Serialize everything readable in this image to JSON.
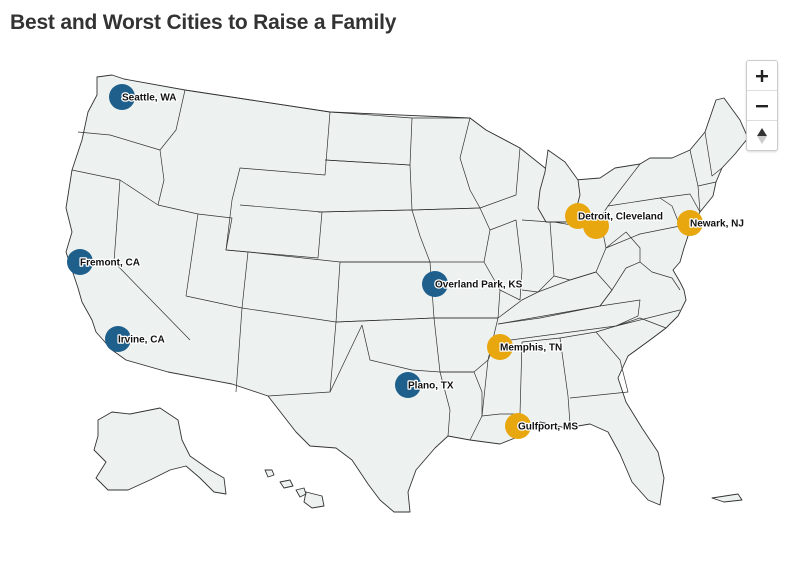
{
  "title": "Best and Worst Cities to Raise a Family",
  "colors": {
    "best": "#1f5f8b",
    "worst": "#e9a70f",
    "land": "#edf2f0",
    "border": "#333333"
  },
  "zoom": {
    "in_icon": "plus-icon",
    "out_icon": "minus-icon",
    "reset_icon": "compass-north-icon"
  },
  "cities": [
    {
      "label": "Seattle, WA",
      "group": "best"
    },
    {
      "label": "Fremont, CA",
      "group": "best"
    },
    {
      "label": "Irvine, CA",
      "group": "best"
    },
    {
      "label": "Overland Park, KS",
      "group": "best"
    },
    {
      "label": "Plano, TX",
      "group": "best"
    },
    {
      "label": "Detroit, Cleveland",
      "group": "worst"
    },
    {
      "label": "Newark, NJ",
      "group": "worst"
    },
    {
      "label": "Memphis, TN",
      "group": "worst"
    },
    {
      "label": "Gulfport, MS",
      "group": "worst"
    }
  ]
}
